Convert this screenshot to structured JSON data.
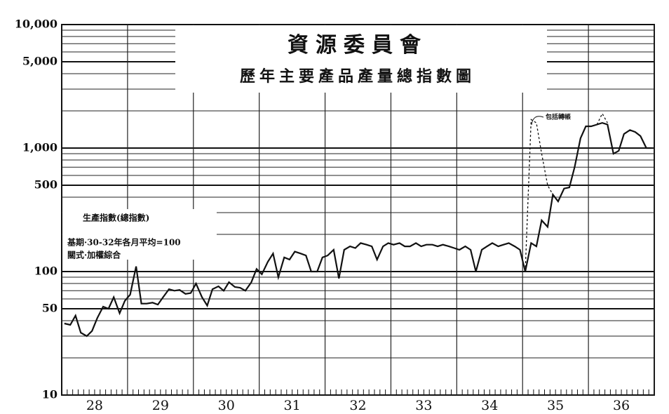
{
  "chart_data": {
    "type": "line",
    "title": "資源委員會",
    "subtitle": "歷年主要產品產量總指數圖",
    "annotations": [
      "生產指數(總指數)",
      "基期·30-32年各月平均=100",
      "關式·加權綜合",
      "包括轉帳"
    ],
    "log_scale": true,
    "grid": true,
    "ylim": [
      10,
      10000
    ],
    "yticks": [
      10,
      50,
      100,
      500,
      {
        "value": 1000,
        "label": "1,000"
      },
      {
        "value": 5000,
        "label": "5,000"
      },
      {
        "value": 10000,
        "label": "10,000"
      }
    ],
    "xlim": [
      28,
      37
    ],
    "xticks": [
      {
        "value": 28.5,
        "label": "28"
      },
      {
        "value": 29.5,
        "label": "29"
      },
      {
        "value": 30.5,
        "label": "30"
      },
      {
        "value": 31.5,
        "label": "31"
      },
      {
        "value": 32.5,
        "label": "32"
      },
      {
        "value": 33.5,
        "label": "33"
      },
      {
        "value": 34.5,
        "label": "34"
      },
      {
        "value": 35.5,
        "label": "35"
      },
      {
        "value": 36.5,
        "label": "36"
      }
    ],
    "x": [
      28.04,
      28.13,
      28.21,
      28.29,
      28.38,
      28.46,
      28.54,
      28.63,
      28.71,
      28.79,
      28.88,
      28.96,
      29.04,
      29.13,
      29.21,
      29.29,
      29.38,
      29.46,
      29.54,
      29.63,
      29.71,
      29.79,
      29.88,
      29.96,
      30.04,
      30.13,
      30.21,
      30.29,
      30.38,
      30.46,
      30.54,
      30.63,
      30.71,
      30.79,
      30.88,
      30.96,
      31.04,
      31.13,
      31.21,
      31.29,
      31.38,
      31.46,
      31.54,
      31.63,
      31.71,
      31.79,
      31.88,
      31.96,
      32.04,
      32.13,
      32.21,
      32.29,
      32.38,
      32.46,
      32.54,
      32.63,
      32.71,
      32.79,
      32.88,
      32.96,
      33.04,
      33.13,
      33.21,
      33.29,
      33.38,
      33.46,
      33.54,
      33.63,
      33.71,
      33.79,
      33.88,
      33.96,
      34.04,
      34.13,
      34.21,
      34.29,
      34.38,
      34.46,
      34.54,
      34.63,
      34.71,
      34.79,
      34.88,
      34.96,
      35.04,
      35.13,
      35.21,
      35.29,
      35.38,
      35.46,
      35.54,
      35.63,
      35.71,
      35.79,
      35.88,
      35.96,
      36.04,
      36.13,
      36.21,
      36.29,
      36.38,
      36.46,
      36.54,
      36.63,
      36.71,
      36.79,
      36.88,
      36.96
    ],
    "series": [
      {
        "color": "#111111",
        "dash": false,
        "values": [
          38,
          37,
          44,
          32,
          30,
          33,
          42,
          52,
          50,
          62,
          46,
          58,
          65,
          110,
          55,
          55,
          56,
          54,
          62,
          72,
          70,
          71,
          66,
          67,
          80,
          62,
          53,
          72,
          76,
          70,
          82,
          75,
          74,
          70,
          82,
          105,
          95,
          120,
          140,
          90,
          130,
          125,
          145,
          140,
          135,
          100,
          100,
          130,
          135,
          150,
          88,
          150,
          160,
          155,
          170,
          165,
          160,
          125,
          160,
          170,
          165,
          170,
          160,
          160,
          170,
          160,
          165,
          165,
          160,
          165,
          160,
          155,
          150,
          160,
          150,
          100,
          150,
          160,
          170,
          160,
          165,
          170,
          160,
          150,
          100,
          170,
          160,
          260,
          230,
          420,
          370,
          470,
          480,
          700,
          1200,
          1500,
          1500,
          1550,
          1600,
          1550,
          900,
          950,
          1300,
          1400,
          1350,
          1250,
          1000,
          1000
        ]
      },
      {
        "color": "#111111",
        "dash": true,
        "values": [
          null,
          null,
          null,
          null,
          null,
          null,
          null,
          null,
          null,
          null,
          null,
          null,
          null,
          null,
          null,
          null,
          null,
          null,
          null,
          null,
          null,
          null,
          null,
          null,
          null,
          null,
          null,
          null,
          null,
          null,
          null,
          null,
          null,
          null,
          null,
          null,
          null,
          null,
          null,
          null,
          null,
          null,
          null,
          null,
          null,
          null,
          null,
          null,
          null,
          null,
          null,
          null,
          null,
          null,
          null,
          null,
          null,
          null,
          null,
          null,
          null,
          null,
          null,
          null,
          null,
          null,
          null,
          null,
          null,
          null,
          null,
          null,
          null,
          null,
          null,
          null,
          null,
          null,
          null,
          null,
          null,
          null,
          null,
          null,
          100,
          1700,
          1600,
          900,
          500,
          420,
          null,
          null,
          null,
          null,
          null,
          null,
          null,
          1550,
          1900,
          1600,
          null,
          null,
          null,
          null,
          null,
          null,
          null,
          null
        ]
      }
    ]
  }
}
